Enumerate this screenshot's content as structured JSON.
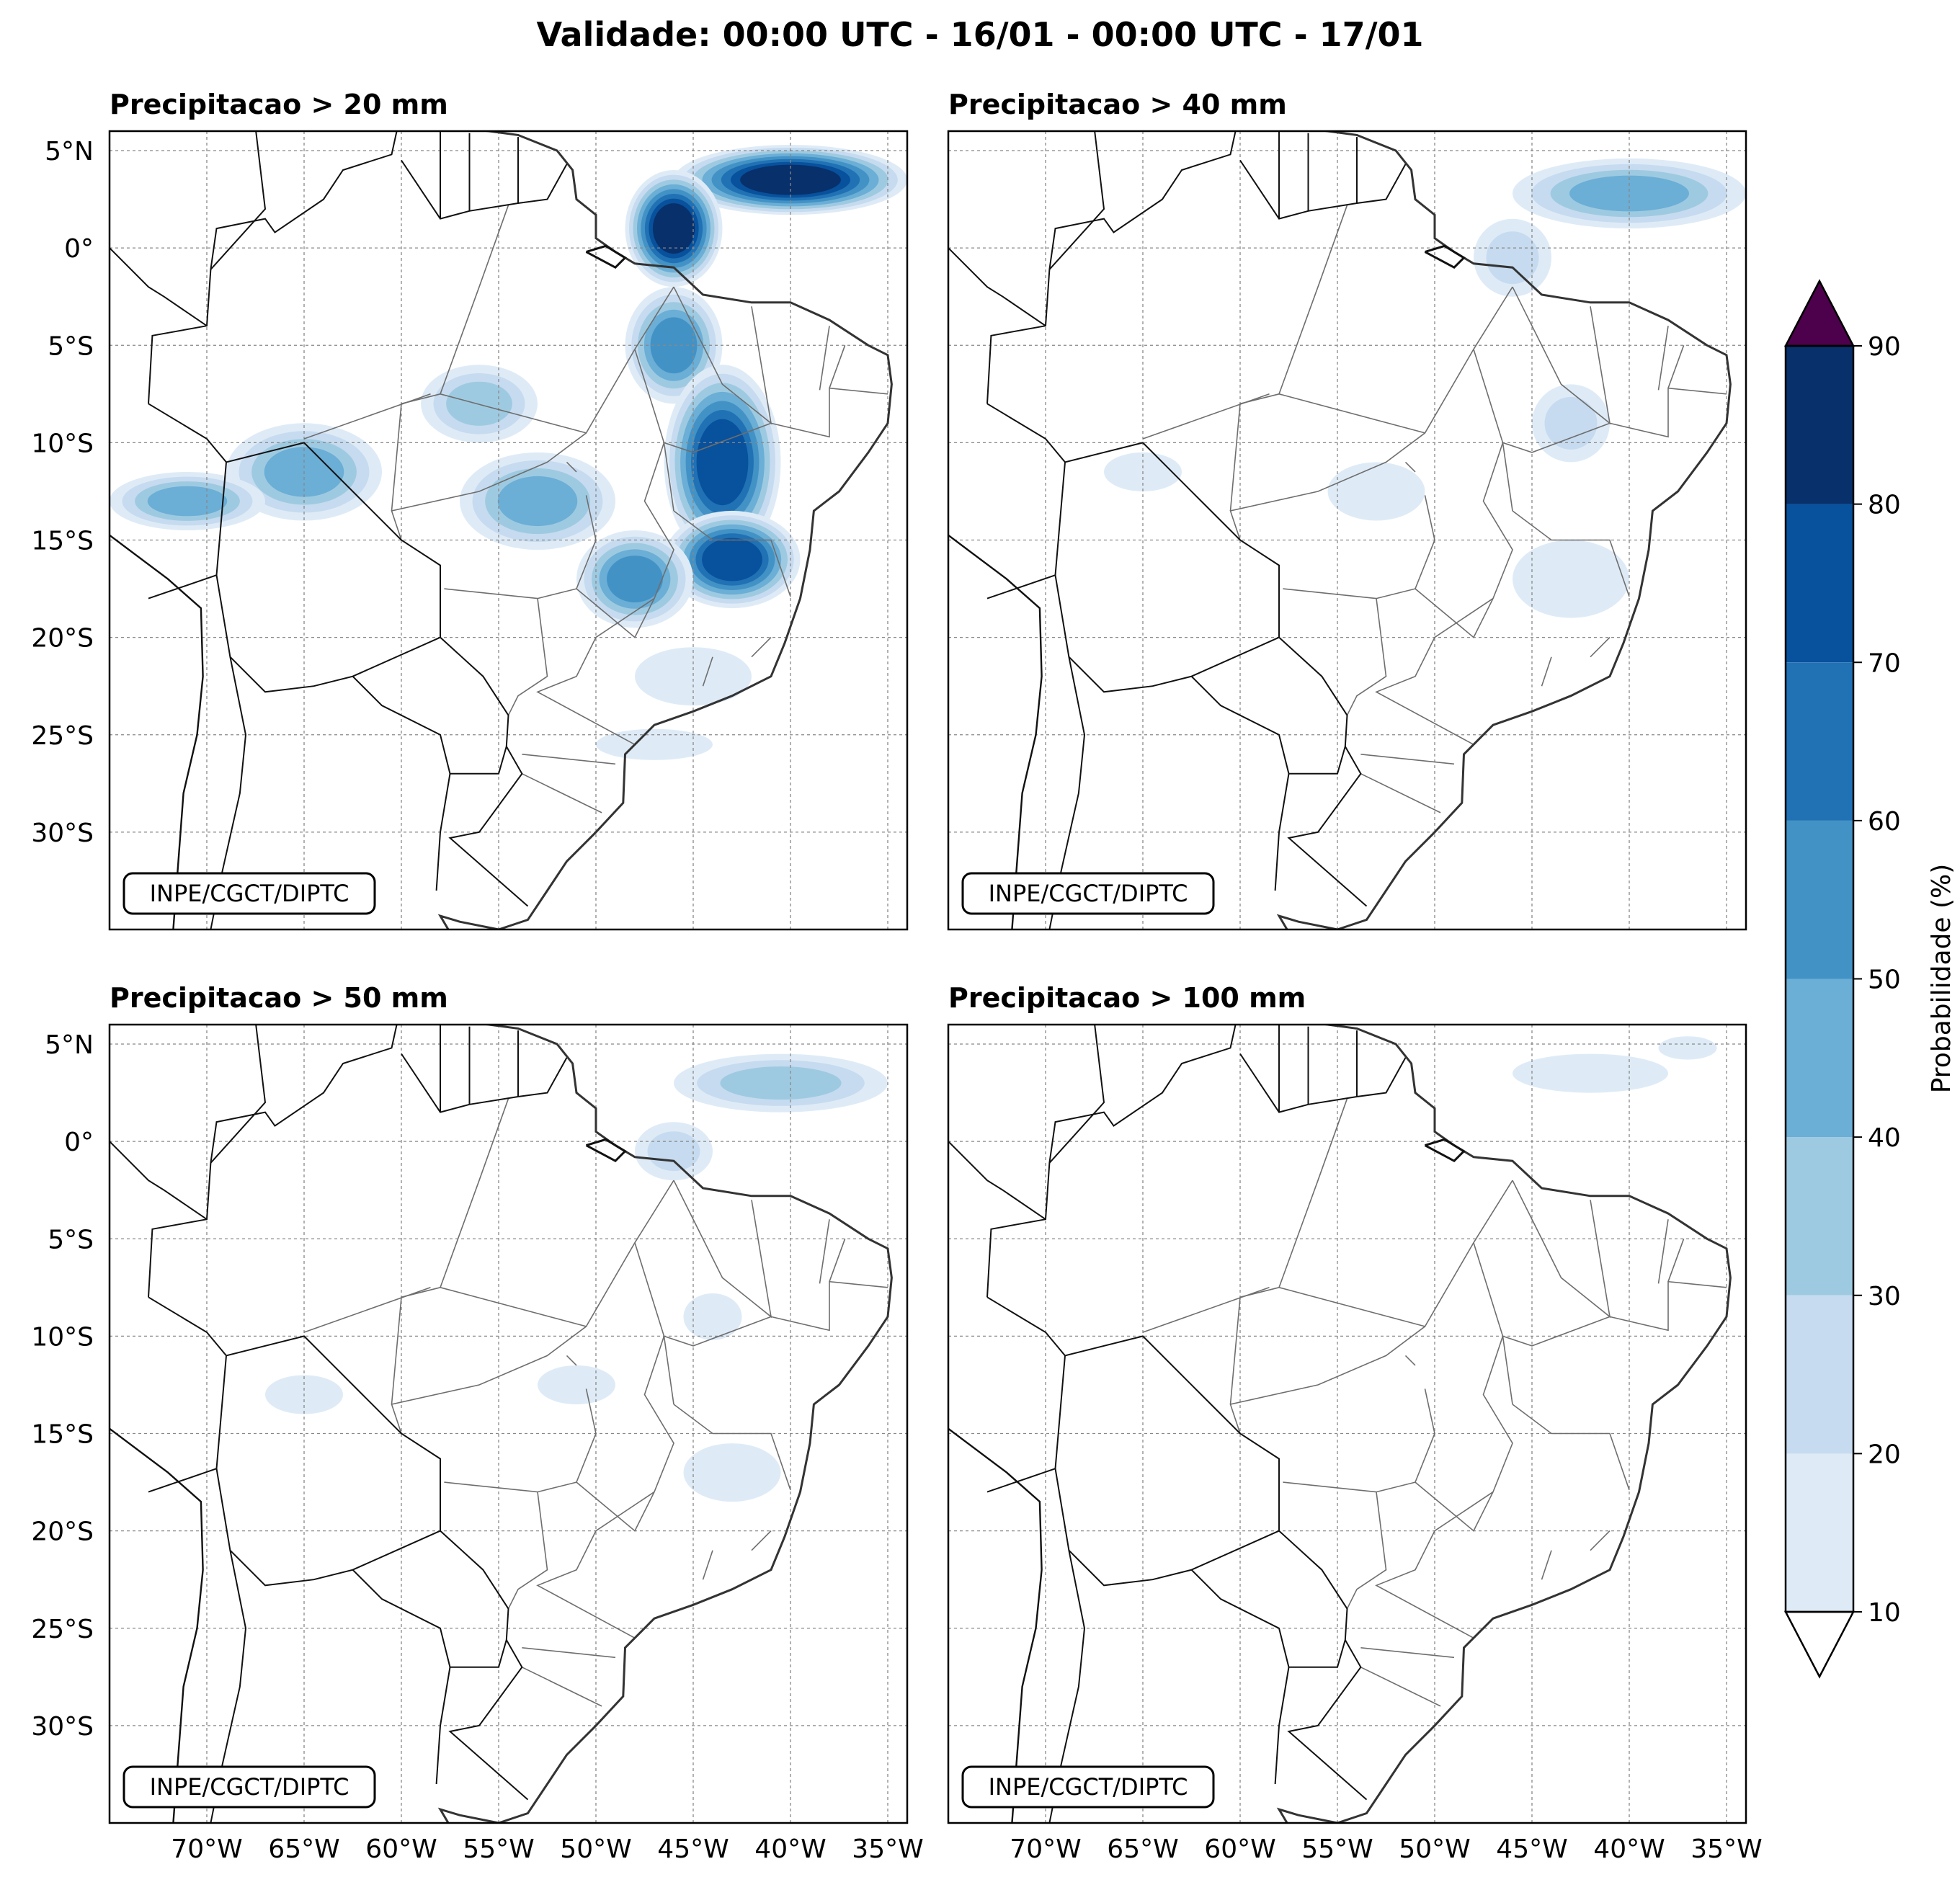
{
  "figure_title": "Validade: 00:00 UTC - 16/01 - 00:00 UTC - 17/01",
  "credit": "INPE/CGCT/DIPTC",
  "panels": [
    {
      "title": "Precipitacao > 20 mm"
    },
    {
      "title": "Precipitacao > 40 mm"
    },
    {
      "title": "Precipitacao > 50 mm"
    },
    {
      "title": "Precipitacao > 100 mm"
    }
  ],
  "map": {
    "lon_range": [
      -75,
      -34
    ],
    "lat_range": [
      -35,
      6
    ],
    "lat_ticks": [
      5,
      0,
      -5,
      -10,
      -15,
      -20,
      -25,
      -30
    ],
    "lat_labels": [
      "5°N",
      "0°",
      "5°S",
      "10°S",
      "15°S",
      "20°S",
      "25°S",
      "30°S"
    ],
    "lon_ticks": [
      -70,
      -65,
      -60,
      -55,
      -50,
      -45,
      -40,
      -35
    ],
    "lon_labels": [
      "70°W",
      "65°W",
      "60°W",
      "55°W",
      "50°W",
      "45°W",
      "40°W",
      "35°W"
    ],
    "grid": true
  },
  "colorbar": {
    "label": "Probabilidade (%)",
    "levels": [
      10,
      20,
      30,
      40,
      50,
      60,
      70,
      80,
      90
    ],
    "level_labels": [
      "10",
      "20",
      "30",
      "40",
      "50",
      "60",
      "70",
      "80",
      "90"
    ],
    "colors": [
      "#deebf7",
      "#c6dbef",
      "#9ecae1",
      "#6baed6",
      "#4292c6",
      "#2171b5",
      "#08519c",
      "#08306b"
    ],
    "over_color": "#4d004b",
    "under_color": "#ffffff"
  },
  "chart_data": {
    "type": "heatmap",
    "variable": "Probabilidade (%)",
    "panels": [
      {
        "threshold_mm": 20,
        "blobs": [
          {
            "lon": -40,
            "lat": 3.5,
            "rx": 6,
            "ry": 1.8,
            "p": 85
          },
          {
            "lon": -46,
            "lat": 1,
            "rx": 2.5,
            "ry": 3,
            "p": 82
          },
          {
            "lon": -46,
            "lat": -5,
            "rx": 2.5,
            "ry": 3,
            "p": 55
          },
          {
            "lon": -43.5,
            "lat": -11,
            "rx": 3,
            "ry": 5,
            "p": 78
          },
          {
            "lon": -43,
            "lat": -16,
            "rx": 3.5,
            "ry": 2.5,
            "p": 72
          },
          {
            "lon": -48,
            "lat": -17,
            "rx": 3,
            "ry": 2.5,
            "p": 55
          },
          {
            "lon": -53,
            "lat": -13,
            "rx": 4,
            "ry": 2.5,
            "p": 48
          },
          {
            "lon": -56,
            "lat": -8,
            "rx": 3,
            "ry": 2,
            "p": 35
          },
          {
            "lon": -65,
            "lat": -11.5,
            "rx": 4,
            "ry": 2.5,
            "p": 48
          },
          {
            "lon": -71,
            "lat": -13,
            "rx": 4,
            "ry": 1.5,
            "p": 45
          },
          {
            "lon": -45,
            "lat": -22,
            "rx": 3,
            "ry": 1.5,
            "p": 15
          },
          {
            "lon": -47,
            "lat": -25.5,
            "rx": 3,
            "ry": 0.8,
            "p": 15
          }
        ]
      },
      {
        "threshold_mm": 40,
        "blobs": [
          {
            "lon": -40,
            "lat": 2.8,
            "rx": 6,
            "ry": 1.8,
            "p": 42
          },
          {
            "lon": -46,
            "lat": -0.5,
            "rx": 2,
            "ry": 2,
            "p": 25
          },
          {
            "lon": -43,
            "lat": -9,
            "rx": 2,
            "ry": 2,
            "p": 22
          },
          {
            "lon": -53,
            "lat": -12.5,
            "rx": 2.5,
            "ry": 1.5,
            "p": 18
          },
          {
            "lon": -43,
            "lat": -17,
            "rx": 3,
            "ry": 2,
            "p": 15
          },
          {
            "lon": -65,
            "lat": -11.5,
            "rx": 2,
            "ry": 1,
            "p": 15
          }
        ]
      },
      {
        "threshold_mm": 50,
        "blobs": [
          {
            "lon": -40.5,
            "lat": 3,
            "rx": 5.5,
            "ry": 1.5,
            "p": 35
          },
          {
            "lon": -46,
            "lat": -0.5,
            "rx": 2,
            "ry": 1.5,
            "p": 22
          },
          {
            "lon": -44,
            "lat": -9,
            "rx": 1.5,
            "ry": 1.2,
            "p": 18
          },
          {
            "lon": -51,
            "lat": -12.5,
            "rx": 2,
            "ry": 1,
            "p": 15
          },
          {
            "lon": -43,
            "lat": -17,
            "rx": 2.5,
            "ry": 1.5,
            "p": 13
          },
          {
            "lon": -65,
            "lat": -13,
            "rx": 2,
            "ry": 1,
            "p": 15
          }
        ]
      },
      {
        "threshold_mm": 100,
        "blobs": [
          {
            "lon": -42,
            "lat": 3.5,
            "rx": 4,
            "ry": 1,
            "p": 12
          },
          {
            "lon": -37,
            "lat": 4.8,
            "rx": 1.5,
            "ry": 0.6,
            "p": 12
          }
        ]
      }
    ]
  }
}
